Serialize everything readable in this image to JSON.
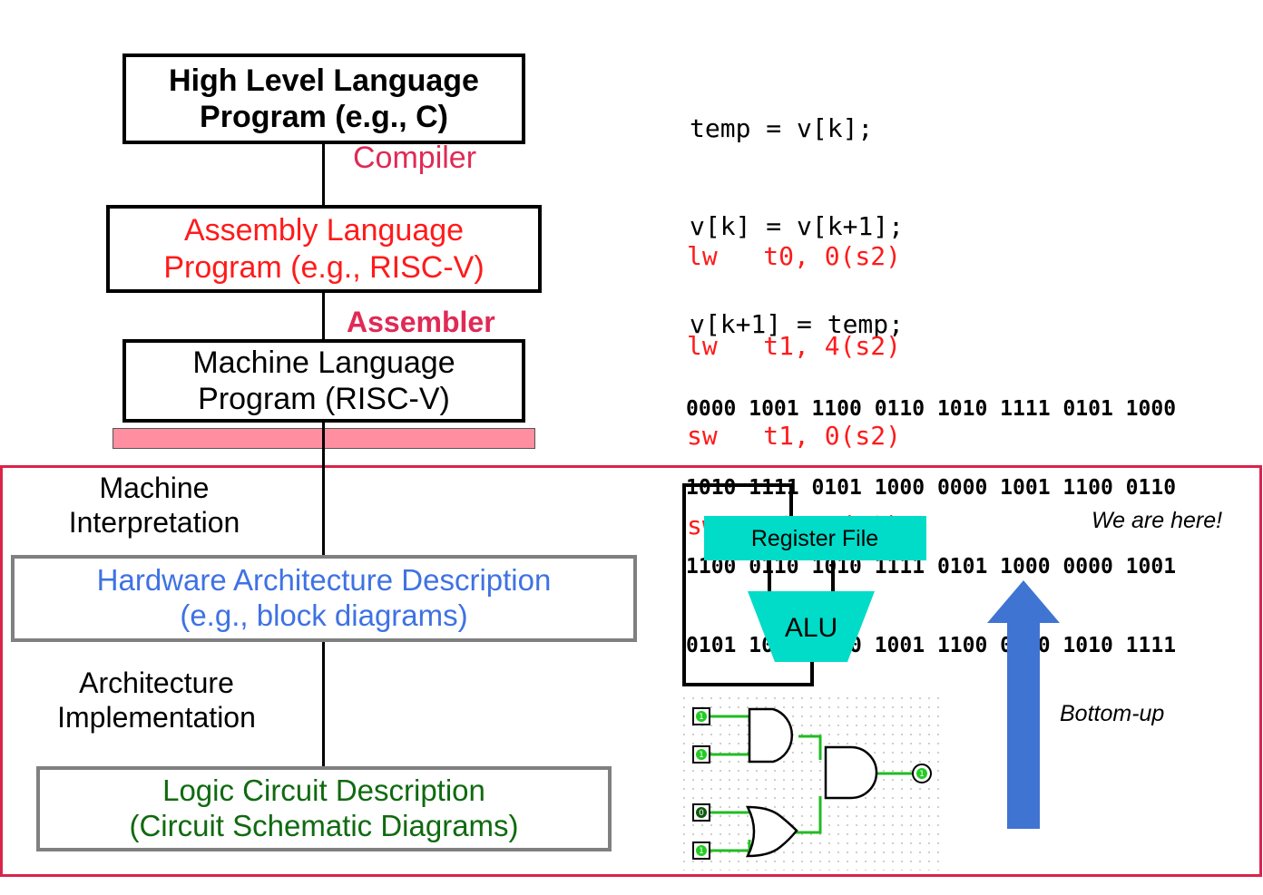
{
  "colors": {
    "compiler": "#e02a55",
    "assembly": "#ff1a1a",
    "hardware": "#3f72e3",
    "logic": "#106a10",
    "frame": "#d9244a",
    "bar": "#ff8fa0",
    "cyan": "#00dcc8",
    "arrow": "#3f74d2"
  },
  "levels": {
    "hll": {
      "line1": "High Level Language",
      "line2": "Program (e.g., C)"
    },
    "asm": {
      "line1": "Assembly  Language",
      "line2": "Program (e.g., RISC-V)"
    },
    "ml": {
      "line1": "Machine  Language",
      "line2": "Program (RISC-V)"
    },
    "hw": {
      "line1": "Hardware Architecture Description",
      "line2": "(e.g., block diagrams)"
    },
    "logic": {
      "line1": "Logic Circuit Description",
      "line2": "(Circuit Schematic Diagrams)"
    }
  },
  "transitions": {
    "compiler": "Compiler",
    "assembler": "Assembler",
    "machine_interp": {
      "line1": "Machine",
      "line2": "Interpretation"
    },
    "arch_impl": {
      "line1": "Architecture",
      "line2": "Implementation"
    }
  },
  "c_code": [
    "temp = v[k];",
    "v[k] = v[k+1];",
    "v[k+1] = temp;"
  ],
  "asm_code": [
    "lw   t0, 0(s2)",
    "lw   t1, 4(s2)",
    "sw   t1, 0(s2)",
    "sw   t0, 4(s2)"
  ],
  "binary": [
    "0000 1001 1100 0110 1010 1111 0101 1000",
    "1010 1111 0101 1000 0000 1001 1100 0110",
    "1100 0110 1010 1111 0101 1000 0000 1001",
    "0101 1000 0000 1001 1100 0110 1010 1111"
  ],
  "block": {
    "register_file": "Register File",
    "alu": "ALU"
  },
  "annotations": {
    "we_are_here": "We are here!",
    "bottom_up": "Bottom-up"
  },
  "circuit_pins": {
    "in1": "1",
    "in2": "1",
    "in3": "0",
    "in4": "1",
    "out": "1"
  }
}
